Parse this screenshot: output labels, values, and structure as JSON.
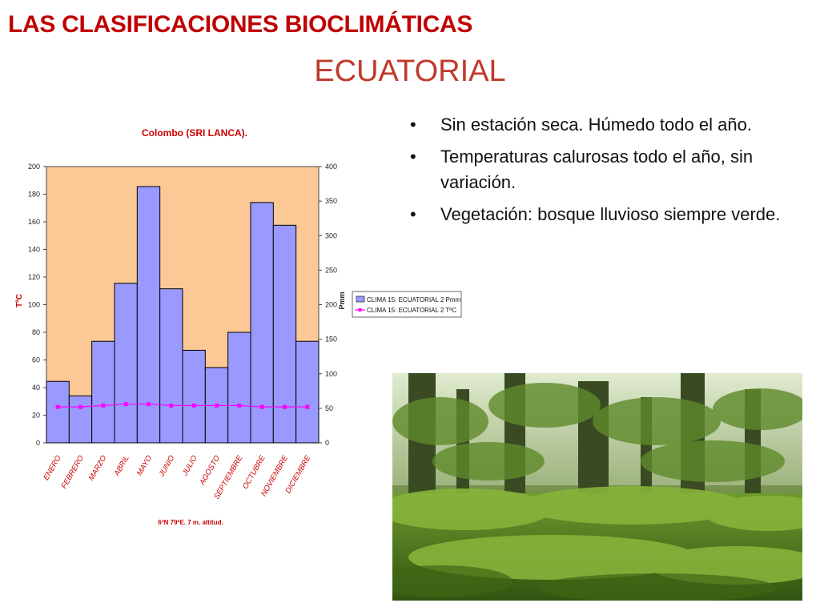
{
  "slide": {
    "title": "LAS CLASIFICACIONES BIOCLIMÁTICAS",
    "subtitle": "ECUATORIAL",
    "bullets": [
      "Sin estación seca.  Húmedo todo el año.",
      "Temperaturas calurosas todo el año, sin variación.",
      "Vegetación: bosque lluvioso siempre verde."
    ],
    "bullet_glyph": "•"
  },
  "photo": {
    "icon": "forest-photo"
  },
  "colors": {
    "title": "#c00000",
    "plot_bg": "#fcc896",
    "bars": "#9999ff",
    "temp_line": "#ff00ff",
    "chart_title": "#cc0000"
  },
  "chart_data": {
    "type": "bar",
    "title": "Colombo (SRI LANCA).",
    "footnote": "6ºN  79ºE.     7 m. altitud.",
    "categories": [
      "ENERO",
      "FEBRERO",
      "MARZO",
      "ABRIL",
      "MAYO",
      "JUNIO",
      "JULIO",
      "AGOSTO",
      "SEPTIEMBRE",
      "OCTUBRE",
      "NOVIEMBRE",
      "DICIEMBRE"
    ],
    "left_axis": {
      "label": "TºC",
      "ylim": [
        0,
        200
      ],
      "ticks": [
        0,
        20,
        40,
        60,
        80,
        100,
        120,
        140,
        160,
        180,
        200
      ]
    },
    "right_axis": {
      "label": "Pmm",
      "ylim": [
        0,
        400
      ],
      "ticks": [
        0,
        50,
        100,
        150,
        200,
        250,
        300,
        350,
        400
      ]
    },
    "series": [
      {
        "name": "CLIMA 15: ECUATORIAL 2 Pmm",
        "type": "bar",
        "axis": "right",
        "values": [
          89,
          68,
          147,
          231,
          371,
          223,
          134,
          109,
          160,
          348,
          315,
          147
        ]
      },
      {
        "name": "CLIMA 15: ECUATORIAL 2 TºC",
        "type": "line",
        "axis": "left",
        "values": [
          26,
          26,
          27,
          28,
          28,
          27,
          27,
          27,
          27,
          26,
          26,
          26
        ]
      }
    ],
    "grid": false,
    "legend": "right"
  }
}
